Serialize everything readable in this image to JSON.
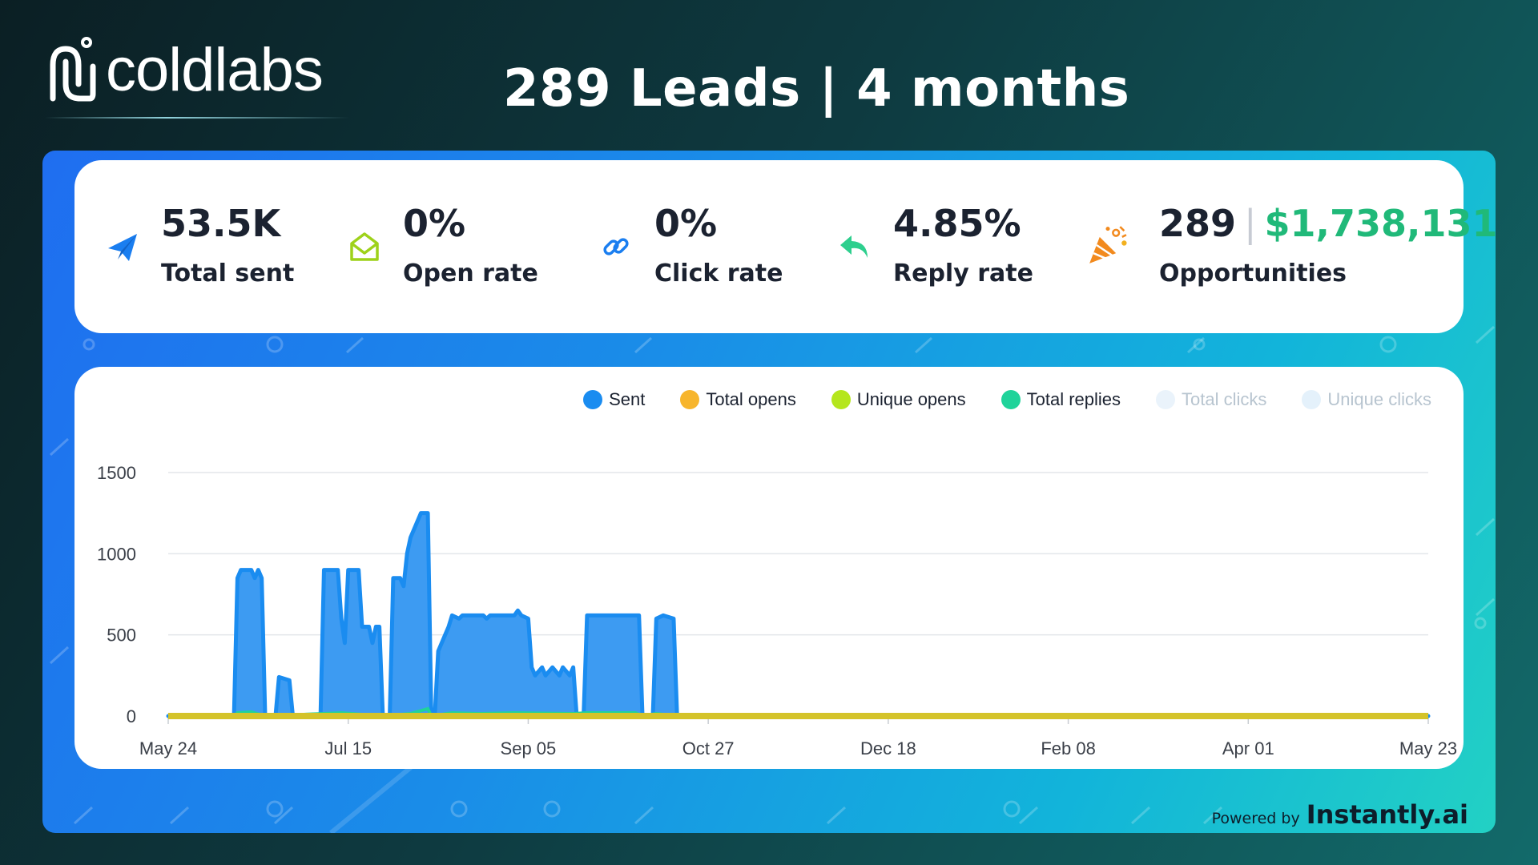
{
  "brand": {
    "name": "coldlabs"
  },
  "headline": "289 Leads | 4 months",
  "stats": {
    "sent": {
      "value": "53.5K",
      "label": "Total sent",
      "icon": "paper-plane-icon"
    },
    "open": {
      "value": "0%",
      "label": "Open rate",
      "icon": "open-envelope-icon"
    },
    "click": {
      "value": "0%",
      "label": "Click rate",
      "icon": "link-icon"
    },
    "reply": {
      "value": "4.85%",
      "label": "Reply rate",
      "icon": "reply-arrow-icon"
    },
    "opps": {
      "count": "289",
      "separator": "|",
      "amount": "$1,738,131",
      "label": "Opportunities",
      "icon": "party-popper-icon"
    }
  },
  "powered_by": {
    "prefix": "Powered by",
    "brand": "Instantly.ai"
  },
  "colors": {
    "sent": "#1a8cf0",
    "total_opens": "#f7b52c",
    "unique_opens": "#b5e61d",
    "total_replies": "#1fd39a",
    "total_clicks": "#eaf3fb",
    "unique_clicks": "#e4f1fb",
    "money": "#20b979"
  },
  "chart_data": {
    "type": "area",
    "x_ticks": [
      "May 24",
      "Jul 15",
      "Sep 05",
      "Oct 27",
      "Dec 18",
      "Feb 08",
      "Apr 01",
      "May 23"
    ],
    "y_ticks": [
      0,
      500,
      1000,
      1500
    ],
    "ylim": [
      0,
      1500
    ],
    "xrange_days": [
      0,
      364
    ],
    "grid": true,
    "legend_position": "top-right",
    "legend": [
      "Sent",
      "Total opens",
      "Unique opens",
      "Total replies",
      "Total clicks",
      "Unique clicks"
    ],
    "series": [
      {
        "name": "Sent",
        "points": [
          [
            0,
            0
          ],
          [
            19,
            0
          ],
          [
            20,
            850
          ],
          [
            21,
            900
          ],
          [
            24,
            900
          ],
          [
            25,
            850
          ],
          [
            26,
            900
          ],
          [
            27,
            850
          ],
          [
            28,
            0
          ],
          [
            31,
            0
          ],
          [
            32,
            240
          ],
          [
            35,
            220
          ],
          [
            36,
            0
          ],
          [
            44,
            0
          ],
          [
            45,
            900
          ],
          [
            49,
            900
          ],
          [
            50,
            600
          ],
          [
            51,
            450
          ],
          [
            52,
            900
          ],
          [
            55,
            900
          ],
          [
            56,
            550
          ],
          [
            58,
            550
          ],
          [
            59,
            450
          ],
          [
            60,
            550
          ],
          [
            61,
            550
          ],
          [
            62,
            0
          ],
          [
            64,
            0
          ],
          [
            65,
            850
          ],
          [
            67,
            850
          ],
          [
            68,
            800
          ],
          [
            69,
            1000
          ],
          [
            70,
            1100
          ],
          [
            71,
            1150
          ],
          [
            73,
            1250
          ],
          [
            75,
            1250
          ],
          [
            76,
            0
          ],
          [
            77,
            0
          ],
          [
            78,
            400
          ],
          [
            80,
            500
          ],
          [
            81,
            550
          ],
          [
            82,
            620
          ],
          [
            84,
            600
          ],
          [
            85,
            620
          ],
          [
            90,
            620
          ],
          [
            91,
            620
          ],
          [
            92,
            600
          ],
          [
            93,
            620
          ],
          [
            97,
            620
          ],
          [
            98,
            620
          ],
          [
            100,
            620
          ],
          [
            101,
            650
          ],
          [
            102,
            620
          ],
          [
            104,
            600
          ],
          [
            105,
            300
          ],
          [
            106,
            250
          ],
          [
            108,
            300
          ],
          [
            109,
            250
          ],
          [
            111,
            300
          ],
          [
            113,
            250
          ],
          [
            114,
            300
          ],
          [
            116,
            250
          ],
          [
            117,
            300
          ],
          [
            118,
            0
          ],
          [
            120,
            0
          ],
          [
            121,
            620
          ],
          [
            135,
            620
          ],
          [
            136,
            620
          ],
          [
            137,
            0
          ],
          [
            140,
            0
          ],
          [
            141,
            600
          ],
          [
            143,
            620
          ],
          [
            146,
            600
          ],
          [
            147,
            0
          ],
          [
            364,
            0
          ]
        ]
      },
      {
        "name": "Total opens",
        "points": [
          [
            0,
            0
          ],
          [
            364,
            0
          ]
        ]
      },
      {
        "name": "Unique opens",
        "points": [
          [
            0,
            0
          ],
          [
            364,
            0
          ]
        ]
      },
      {
        "name": "Total replies",
        "points": [
          [
            0,
            0
          ],
          [
            19,
            0
          ],
          [
            20,
            20
          ],
          [
            24,
            25
          ],
          [
            28,
            0
          ],
          [
            45,
            15
          ],
          [
            50,
            20
          ],
          [
            62,
            0
          ],
          [
            70,
            15
          ],
          [
            75,
            45
          ],
          [
            76,
            0
          ],
          [
            82,
            20
          ],
          [
            90,
            15
          ],
          [
            100,
            20
          ],
          [
            117,
            15
          ],
          [
            121,
            20
          ],
          [
            135,
            20
          ],
          [
            137,
            0
          ],
          [
            141,
            15
          ],
          [
            147,
            0
          ],
          [
            364,
            0
          ]
        ]
      },
      {
        "name": "Total clicks",
        "points": [
          [
            0,
            0
          ],
          [
            364,
            0
          ]
        ]
      },
      {
        "name": "Unique clicks",
        "points": [
          [
            0,
            0
          ],
          [
            364,
            0
          ]
        ]
      }
    ]
  }
}
